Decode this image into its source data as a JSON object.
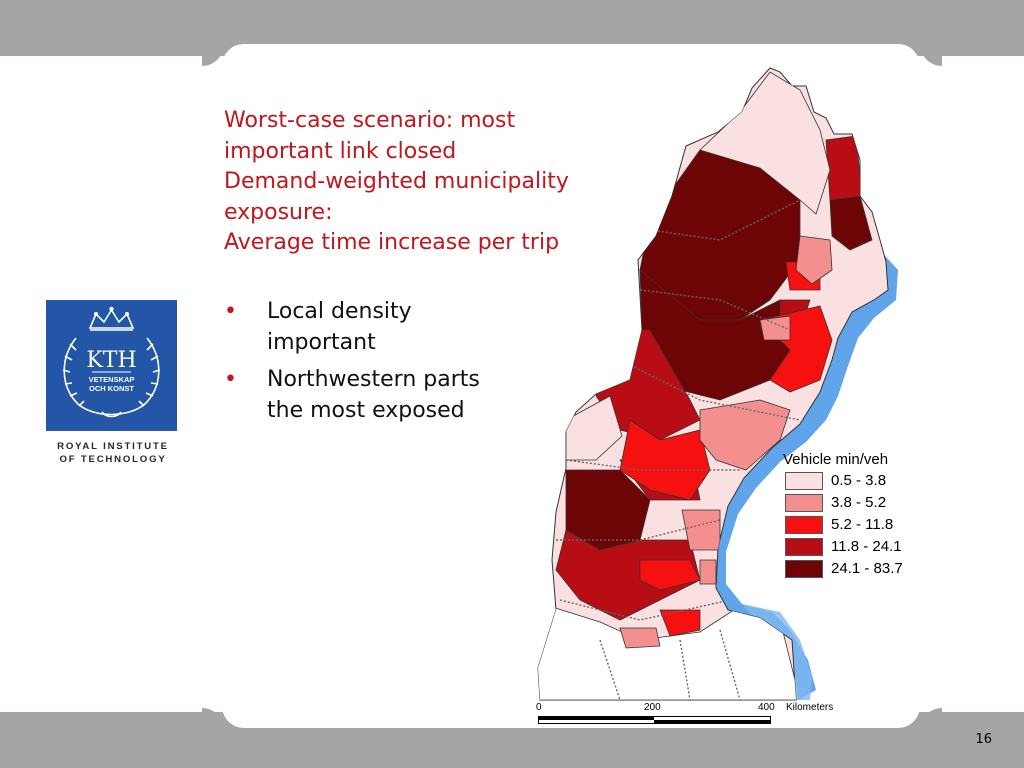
{
  "title_lines": [
    "Worst-case scenario: most",
    "important link closed",
    "Demand-weighted municipality",
    "exposure:",
    "Average time increase per trip"
  ],
  "bullets": [
    {
      "symbol": "•",
      "lines": [
        "Local density",
        "important"
      ]
    },
    {
      "symbol": "•",
      "lines": [
        "Northwestern parts",
        "the most exposed"
      ]
    }
  ],
  "logo": {
    "wordmark": "KTH",
    "motto_lines": [
      "VETENSKAP",
      "OCH KONST"
    ],
    "caption_lines": [
      "ROYAL INSTITUTE",
      "OF TECHNOLOGY"
    ],
    "color": "#2356a6"
  },
  "legend": {
    "title": "Vehicle min/veh",
    "classes": [
      {
        "label": "0.5 - 3.8",
        "color": "#fbe0e2"
      },
      {
        "label": "3.8 - 5.2",
        "color": "#f48f8f"
      },
      {
        "label": "5.2 - 11.8",
        "color": "#f71010"
      },
      {
        "label": "11.8 - 24.1",
        "color": "#b80d15"
      },
      {
        "label": "24.1 - 83.7",
        "color": "#6d0507"
      }
    ]
  },
  "scalebar": {
    "ticks": [
      "0",
      "200",
      "400"
    ],
    "unit": "Kilometers"
  },
  "map": {
    "water_color": "#4f9be8",
    "border_color": "#333333"
  },
  "slide": {
    "page_number": "16",
    "accent_color": "#c0161c",
    "band_color": "#a6a4a7"
  }
}
